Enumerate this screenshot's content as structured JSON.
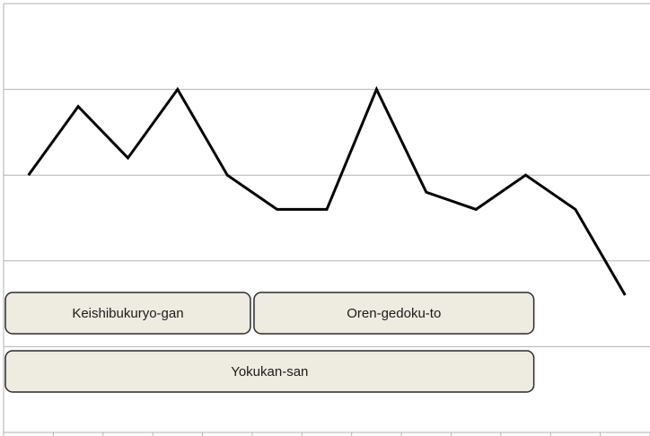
{
  "chart_data": {
    "type": "line",
    "title": "",
    "xlabel": "",
    "ylabel": "",
    "grid": true,
    "legend": "none",
    "x": [
      1,
      2,
      3,
      4,
      5,
      6,
      7,
      8,
      9,
      10,
      11,
      12,
      13
    ],
    "series": [
      {
        "values": [
          5.0,
          5.8,
          5.2,
          6.0,
          5.0,
          4.6,
          4.6,
          6.0,
          4.8,
          4.6,
          5.0,
          4.6,
          3.6
        ]
      }
    ],
    "ylim": [
      2.0,
      7.0
    ],
    "xlim": [
      0.5,
      13.5
    ],
    "line_color": "#000000",
    "grid_color": "#b0b0b0",
    "annotations": [
      {
        "label": "Keishibukuryo-gan",
        "x_start": 0.5,
        "x_end": 5.5,
        "row": 0
      },
      {
        "label": "Oren-gedoku-to",
        "x_start": 5.5,
        "x_end": 11.2,
        "row": 0
      },
      {
        "label": "Yokukan-san",
        "x_start": 0.5,
        "x_end": 11.2,
        "row": 1
      }
    ],
    "annotation_fill": "#eeebe0",
    "annotation_stroke": "#2b2b2b"
  }
}
